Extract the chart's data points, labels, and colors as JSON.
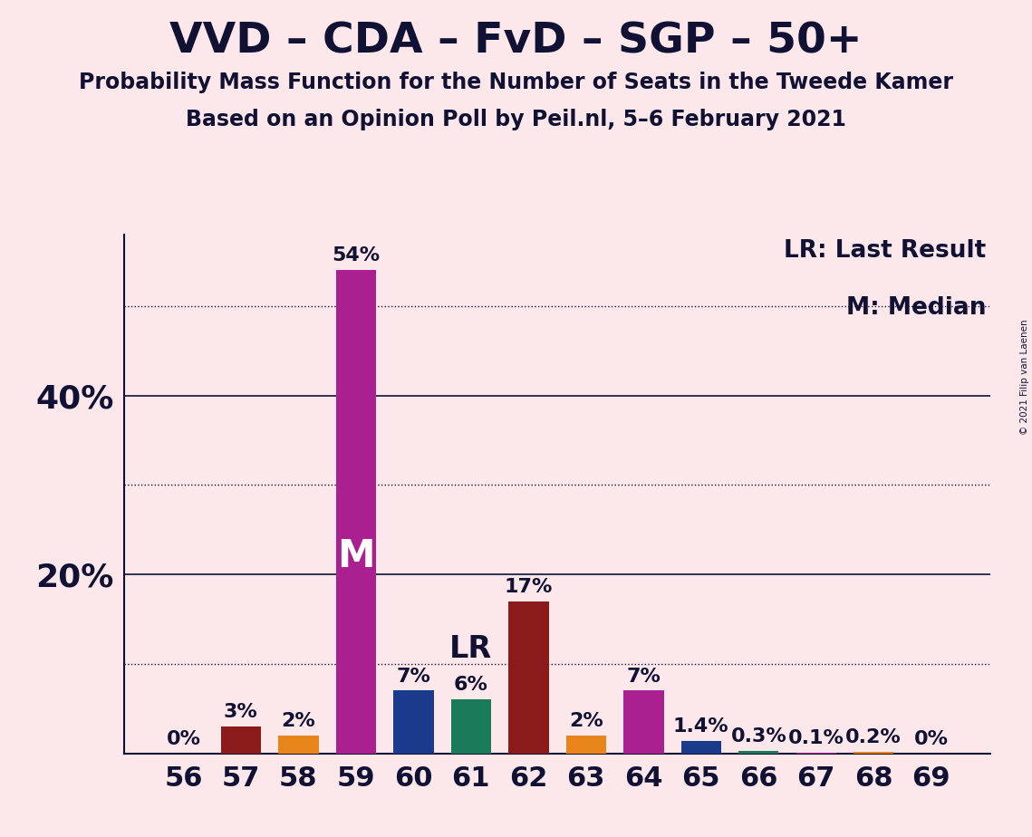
{
  "title": "VVD – CDA – FvD – SGP – 50+",
  "subtitle1": "Probability Mass Function for the Number of Seats in the Tweede Kamer",
  "subtitle2": "Based on an Opinion Poll by Peil.nl, 5–6 February 2021",
  "copyright": "© 2021 Filip van Laenen",
  "legend_lr": "LR: Last Result",
  "legend_m": "M: Median",
  "background_color": "#fce8ea",
  "categories": [
    56,
    57,
    58,
    59,
    60,
    61,
    62,
    63,
    64,
    65,
    66,
    67,
    68,
    69
  ],
  "values": [
    0.0,
    3.0,
    2.0,
    54.0,
    7.0,
    6.0,
    17.0,
    2.0,
    7.0,
    1.4,
    0.3,
    0.1,
    0.2,
    0.0
  ],
  "labels": [
    "0%",
    "3%",
    "2%",
    "54%",
    "7%",
    "6%",
    "17%",
    "2%",
    "7%",
    "1.4%",
    "0.3%",
    "0.1%",
    "0.2%",
    "0%"
  ],
  "colors": [
    "#e8851a",
    "#8b1a1a",
    "#e8851a",
    "#aa2090",
    "#1a3a8b",
    "#1a7a5a",
    "#8b1a1a",
    "#e8851a",
    "#aa2090",
    "#1a3a8b",
    "#1a7a5a",
    "#aa2090",
    "#e8851a",
    "#e8851a"
  ],
  "median_bar_idx": 3,
  "lr_bar_idx": 5,
  "median_label": "M",
  "lr_label": "LR",
  "ylim": [
    0,
    58
  ],
  "solid_gridlines": [
    20,
    40
  ],
  "dotted_gridlines": [
    10,
    30,
    50
  ],
  "ytick_positions": [
    20,
    40
  ],
  "ytick_labels": [
    "20%",
    "40%"
  ],
  "grid_color": "#111133",
  "title_fontsize": 34,
  "subtitle_fontsize": 17,
  "axis_tick_fontsize": 22,
  "bar_label_fontsize": 16,
  "legend_fontsize": 19,
  "ylabel_fontsize": 26
}
